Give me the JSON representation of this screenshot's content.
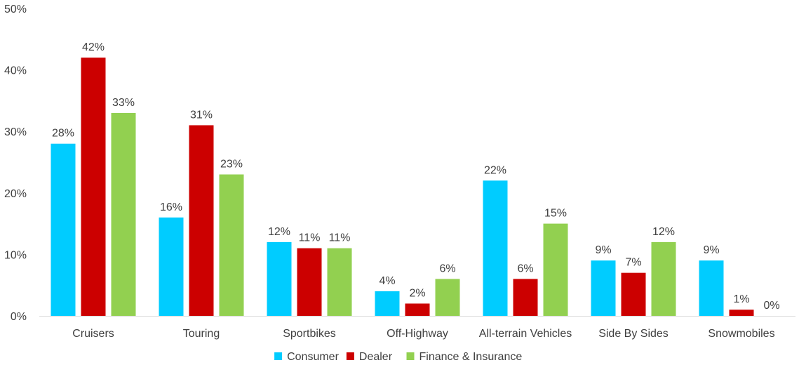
{
  "chart_data": {
    "type": "bar",
    "title": "",
    "xlabel": "",
    "ylabel": "",
    "ylim": [
      0,
      50
    ],
    "y_ticks": [
      "0%",
      "10%",
      "20%",
      "30%",
      "40%",
      "50%"
    ],
    "y_tick_values": [
      0,
      10,
      20,
      30,
      40,
      50
    ],
    "grid": false,
    "legend_position": "bottom",
    "categories": [
      "Cruisers",
      "Touring",
      "Sportbikes",
      "Off-Highway",
      "All-terrain Vehicles",
      "Side By Sides",
      "Snowmobiles"
    ],
    "series": [
      {
        "name": "Consumer",
        "color": "#00CCFF",
        "values": [
          28,
          16,
          12,
          4,
          22,
          9,
          9
        ],
        "labels": [
          "28%",
          "16%",
          "12%",
          "4%",
          "22%",
          "9%",
          "9%"
        ]
      },
      {
        "name": "Dealer",
        "color": "#CC0000",
        "values": [
          42,
          31,
          11,
          2,
          6,
          7,
          1
        ],
        "labels": [
          "42%",
          "31%",
          "11%",
          "2%",
          "6%",
          "7%",
          "1%"
        ]
      },
      {
        "name": "Finance & Insurance",
        "color": "#92D050",
        "values": [
          33,
          23,
          11,
          6,
          15,
          12,
          0
        ],
        "labels": [
          "33%",
          "23%",
          "11%",
          "6%",
          "15%",
          "12%",
          "0%"
        ]
      }
    ]
  }
}
